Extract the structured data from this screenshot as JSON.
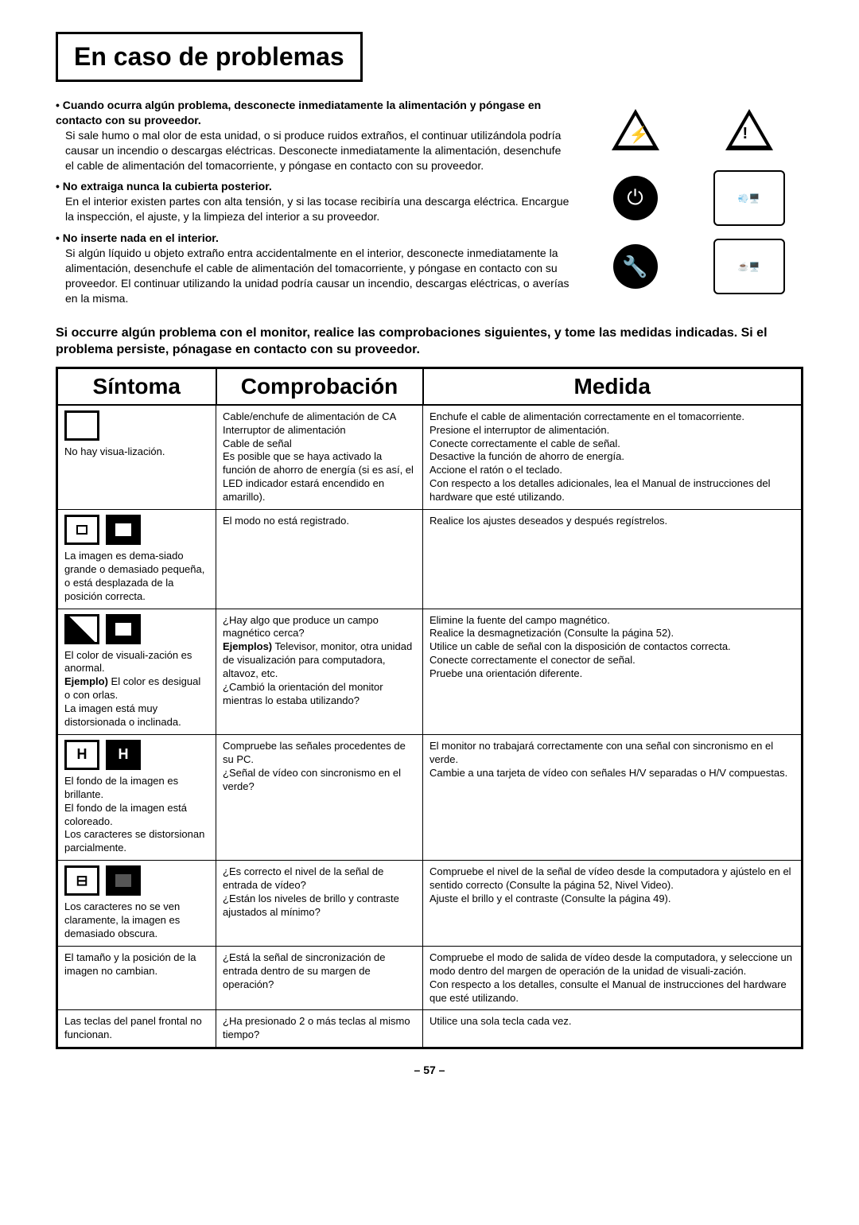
{
  "title": "En caso de problemas",
  "warnings": [
    {
      "head": "Cuando ocurra algún problema, desconecte inmediatamente la alimentación y póngase en contacto con su proveedor.",
      "body": "Si sale humo o mal olor de esta unidad, o si produce ruidos extraños, el continuar utilizándola podría causar un incendio o descargas eléctricas. Desconecte inmediatamente la alimentación, desenchufe el cable de alimentación del tomacorriente, y póngase en contacto con su proveedor."
    },
    {
      "head": "No extraiga nunca la cubierta posterior.",
      "body": "En el interior existen partes con alta tensión, y si las tocase recibiría una descarga eléctrica. Encargue la inspección, el ajuste, y la limpieza del interior a su proveedor."
    },
    {
      "head": "No inserte nada en el interior.",
      "body": "Si algún líquido u objeto extraño entra accidentalmente en el interior, desconecte inmediatamente la alimentación, desenchufe el cable de alimentación del tomacorriente, y póngase en contacto con su proveedor. El continuar utilizando la unidad podría causar un incendio, descargas eléctricas, o averías en la misma."
    }
  ],
  "intro": "Si occurre algún problema con el monitor, realice las comprobaciones siguientes, y tome las medidas indicadas. Si el problema persiste, pónagase en contacto con su proveedor.",
  "headers": {
    "symptom": "Síntoma",
    "check": "Comprobación",
    "action": "Medida"
  },
  "rows": [
    {
      "symptom": "No hay visua-lización.",
      "check": "Cable/enchufe de alimentación de CA\nInterruptor de alimentación\nCable de señal\nEs posible que se haya activado la función de ahorro de energía (si es así, el LED indicador estará encendido en amarillo).",
      "action": "Enchufe el cable de alimentación correctamente en el tomacorriente.\nPresione el interruptor de alimentación.\nConecte correctamente el cable de señal.\nDesactive la función de ahorro de energía.\nAccione el ratón o el teclado.\nCon respecto a los detalles adicionales, lea el Manual de instrucciones del hardware que esté utilizando.",
      "icon": "blank"
    },
    {
      "symptom": "La imagen es dema-siado grande o demasiado pequeña, o está desplazada de la posición correcta.",
      "check": "El modo no está registrado.",
      "action": "Realice los ajustes deseados y después regístrelos.",
      "icon": "size"
    },
    {
      "symptom": "El color de visuali-zación es anormal.\nEjemplo) El color es desigual o con orlas.\nLa imagen está muy distorsionada o inclinada.",
      "check": "¿Hay algo que produce un campo magnético cerca?\nEjemplos) Televisor, monitor, otra unidad de visualización para computadora, altavoz, etc.\n¿Cambió la orientación del monitor mientras lo estaba utilizando?",
      "action": "Elimine la fuente del campo magnético.\nRealice la desmagnetización (Consulte la página 52).\nUtilice un cable de señal con la disposición de contactos correcta.\nConecte correctamente el conector de señal.\nPruebe una orientación diferente.",
      "icon": "color"
    },
    {
      "symptom": "El fondo de la imagen es brillante.\nEl fondo de la imagen está coloreado.\nLos caracteres se distorsionan parcialmente.",
      "check": "Compruebe las señales procedentes de su PC.\n¿Señal de vídeo con sincronismo en el verde?",
      "action": "El monitor no trabajará correctamente con una señal con sincronismo en el verde.\nCambie a una tarjeta de vídeo con señales H/V separadas o H/V compuestas.",
      "icon": "H"
    },
    {
      "symptom": "Los caracteres no se ven claramente, la imagen es demasiado obscura.",
      "check": "¿Es correcto el nivel de la señal de entrada de vídeo?\n¿Están los niveles de brillo y contraste ajustados al mínimo?",
      "action": "Compruebe el nivel de la señal de vídeo desde la computadora y ajústelo en el sentido correcto (Consulte la página 52, Nivel Video).\nAjuste el brillo y el contraste (Consulte la página 49).",
      "icon": "dim"
    },
    {
      "symptom": "El tamaño y la posición de la imagen no cambian.",
      "check": "¿Está la señal de sincronización de entrada dentro de su margen de operación?",
      "action": "Compruebe el modo de salida de vídeo desde la computadora, y seleccione un modo dentro del margen de operación de la unidad de visuali-zación.\nCon respecto a los detalles, consulte el Manual de instrucciones del hardware que esté utilizando.",
      "icon": null
    },
    {
      "symptom": "Las teclas del panel frontal no funcionan.",
      "check": "¿Ha presionado 2 o más teclas al mismo tiempo?",
      "action": "Utilice una sola tecla cada vez.",
      "icon": null
    }
  ],
  "page": "– 57 –"
}
